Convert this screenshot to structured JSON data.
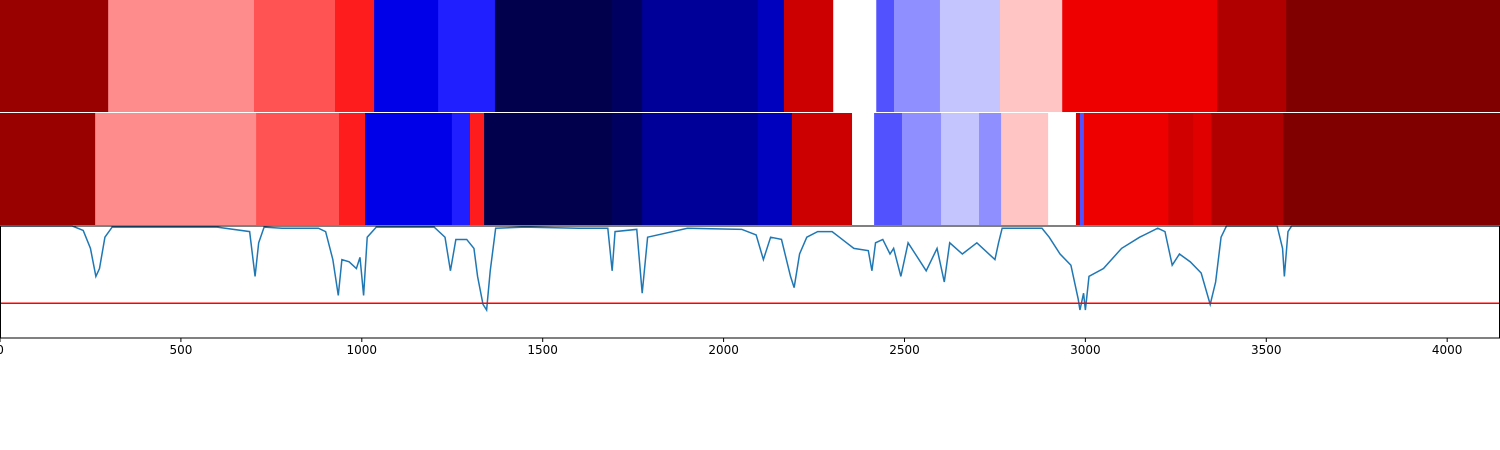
{
  "chart_data": [
    {
      "type": "segments",
      "colormap": "seismic",
      "clim": [
        -1,
        1
      ],
      "xlim": [
        0,
        4146
      ],
      "edges": [
        0,
        299,
        702,
        926,
        1034,
        1211,
        1368,
        1692,
        1775,
        2095,
        2167,
        2303,
        2422,
        2471,
        2598,
        2764,
        2936,
        3364,
        3555,
        4146
      ],
      "values": [
        0.9,
        0.225,
        0.34,
        0.445,
        -0.564,
        -0.44,
        -1,
        -0.946,
        -0.786,
        -0.68,
        0.7,
        0,
        -0.34,
        -0.22,
        -0.115,
        0.115,
        0.567,
        0.81,
        1
      ]
    },
    {
      "type": "segments",
      "colormap": "seismic",
      "clim": [
        -1,
        1
      ],
      "xlim": [
        0,
        4146
      ],
      "edges": [
        0,
        263,
        708,
        937,
        1009,
        1249,
        1299,
        1338,
        1692,
        1775,
        2095,
        2189,
        2355,
        2416,
        2493,
        2601,
        2706,
        2767,
        2897,
        2974,
        2985,
        2996,
        3229,
        3298,
        3348,
        3547,
        4146
      ],
      "values": [
        0.9,
        0.225,
        0.34,
        0.445,
        -0.564,
        -0.44,
        0.445,
        -1,
        -0.946,
        -0.786,
        -0.68,
        0.7,
        0,
        -0.34,
        -0.22,
        -0.115,
        -0.22,
        0.115,
        0,
        0.7,
        -0.34,
        0.567,
        0.68,
        0.62,
        0.81,
        1
      ]
    },
    {
      "type": "line",
      "color": "#1f77b4",
      "xlim": [
        0,
        4146
      ],
      "ylim": [
        0,
        1
      ],
      "xticks": [
        0,
        500,
        1000,
        1500,
        2000,
        2500,
        3000,
        3500,
        4000
      ],
      "hline": {
        "value": 0.31,
        "color": "#ff0000"
      },
      "x": [
        0,
        200,
        230,
        250,
        265,
        275,
        290,
        310,
        600,
        690,
        705,
        715,
        730,
        780,
        880,
        900,
        920,
        935,
        945,
        965,
        985,
        995,
        1005,
        1015,
        1040,
        1200,
        1230,
        1245,
        1260,
        1290,
        1310,
        1320,
        1335,
        1345,
        1355,
        1370,
        1450,
        1600,
        1680,
        1692,
        1700,
        1760,
        1775,
        1790,
        1900,
        2050,
        2090,
        2110,
        2130,
        2160,
        2185,
        2195,
        2210,
        2230,
        2260,
        2300,
        2320,
        2340,
        2360,
        2400,
        2410,
        2420,
        2440,
        2460,
        2470,
        2490,
        2510,
        2530,
        2560,
        2590,
        2610,
        2625,
        2660,
        2700,
        2750,
        2760,
        2770,
        2880,
        2900,
        2930,
        2960,
        2980,
        2985,
        2995,
        3000,
        3010,
        3050,
        3100,
        3150,
        3200,
        3220,
        3240,
        3260,
        3290,
        3320,
        3345,
        3360,
        3375,
        3390,
        3530,
        3545,
        3550,
        3560,
        3570,
        4146
      ],
      "values": [
        1,
        1,
        0.96,
        0.8,
        0.55,
        0.62,
        0.9,
        0.99,
        0.99,
        0.95,
        0.55,
        0.85,
        0.99,
        0.98,
        0.98,
        0.95,
        0.7,
        0.38,
        0.7,
        0.68,
        0.62,
        0.72,
        0.38,
        0.9,
        0.99,
        0.99,
        0.9,
        0.6,
        0.88,
        0.88,
        0.8,
        0.55,
        0.3,
        0.25,
        0.6,
        0.98,
        0.99,
        0.98,
        0.98,
        0.6,
        0.95,
        0.97,
        0.4,
        0.9,
        0.98,
        0.97,
        0.92,
        0.7,
        0.9,
        0.88,
        0.55,
        0.45,
        0.75,
        0.9,
        0.95,
        0.95,
        0.9,
        0.85,
        0.8,
        0.78,
        0.6,
        0.85,
        0.88,
        0.75,
        0.8,
        0.55,
        0.85,
        0.75,
        0.6,
        0.8,
        0.5,
        0.85,
        0.75,
        0.85,
        0.7,
        0.85,
        0.98,
        0.98,
        0.9,
        0.75,
        0.65,
        0.35,
        0.25,
        0.4,
        0.25,
        0.55,
        0.62,
        0.8,
        0.9,
        0.98,
        0.95,
        0.65,
        0.75,
        0.68,
        0.58,
        0.3,
        0.5,
        0.9,
        1,
        1,
        0.8,
        0.55,
        0.95,
        1,
        1
      ]
    }
  ]
}
